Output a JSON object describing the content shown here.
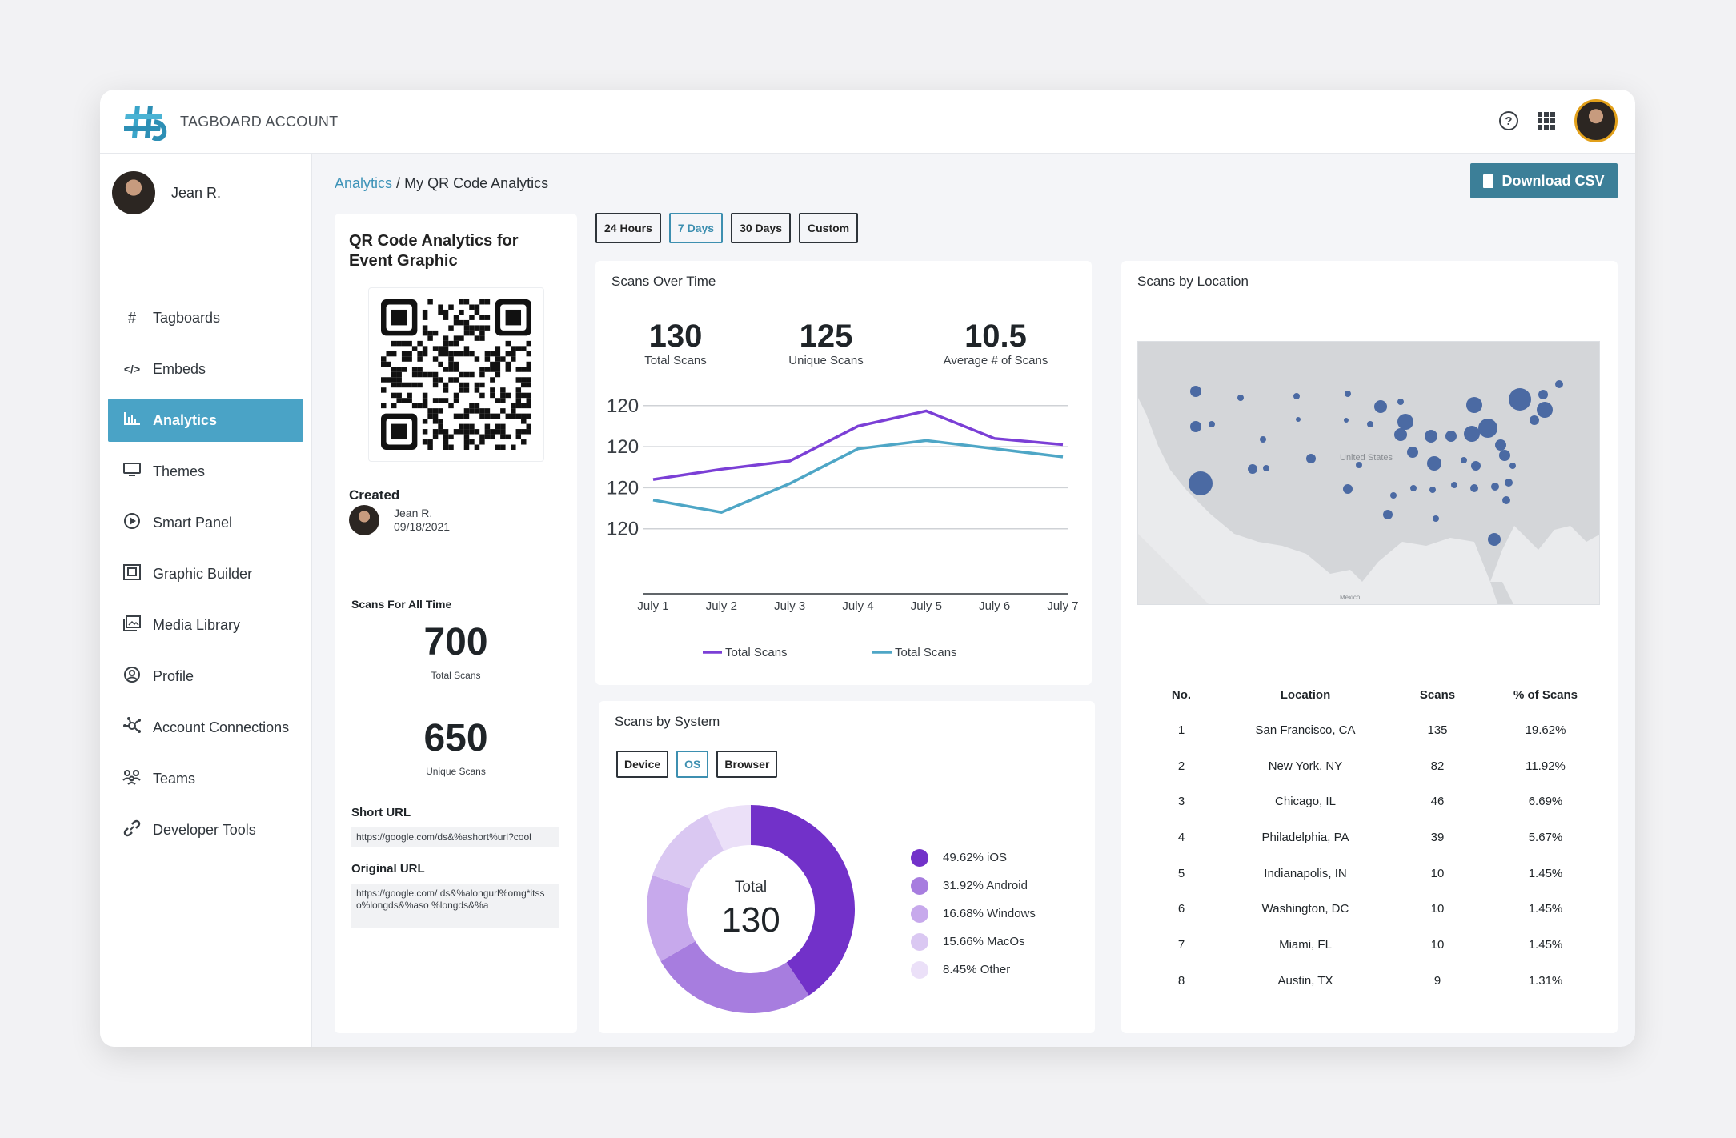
{
  "header": {
    "account_label": "TAGBOARD ACCOUNT",
    "icons": [
      "help-icon",
      "apps-grid-icon",
      "avatar"
    ]
  },
  "sidebar": {
    "user_name": "Jean R.",
    "items": [
      {
        "label": "Tagboards",
        "icon": "hashtag-icon"
      },
      {
        "label": "Embeds",
        "icon": "code-icon"
      },
      {
        "label": "Analytics",
        "icon": "bar-chart-icon",
        "active": true
      },
      {
        "label": "Themes",
        "icon": "monitor-icon"
      },
      {
        "label": "Smart Panel",
        "icon": "play-circle-icon"
      },
      {
        "label": "Graphic Builder",
        "icon": "graphic-icon"
      },
      {
        "label": "Media Library",
        "icon": "image-icon"
      },
      {
        "label": "Profile",
        "icon": "user-circle-icon"
      },
      {
        "label": "Account Connections",
        "icon": "network-icon"
      },
      {
        "label": "Teams",
        "icon": "team-icon"
      },
      {
        "label": "Developer Tools",
        "icon": "link-icon"
      }
    ]
  },
  "breadcrumb": {
    "root": "Analytics",
    "separator": "/",
    "current": "My QR Code Analytics"
  },
  "download_button": "Download CSV",
  "qr_panel": {
    "title": "QR Code Analytics for Event Graphic",
    "created_label": "Created",
    "created_by": "Jean R.",
    "created_date": "09/18/2021",
    "all_time_label": "Scans For All Time",
    "total_scans": "700",
    "total_scans_label": "Total Scans",
    "unique_scans": "650",
    "unique_scans_label": "Unique Scans",
    "short_url_label": "Short URL",
    "short_url": "https://google.com/ds&%ashort%url?cool",
    "original_url_label": "Original URL",
    "original_url": "https://google.com/ ds&%alongurl%omg*itsso%longds&%aso %longds&%a"
  },
  "time_ranges": [
    {
      "label": "24 Hours"
    },
    {
      "label": "7 Days",
      "active": true
    },
    {
      "label": "30 Days"
    },
    {
      "label": "Custom"
    }
  ],
  "scans_over_time": {
    "title": "Scans Over Time",
    "stats": [
      {
        "value": "130",
        "label": "Total Scans"
      },
      {
        "value": "125",
        "label": "Unique Scans"
      },
      {
        "value": "10.5",
        "label": "Average # of Scans"
      }
    ]
  },
  "scans_by_system": {
    "title": "Scans by System",
    "tabs": [
      {
        "label": "Device"
      },
      {
        "label": "OS",
        "active": true
      },
      {
        "label": "Browser"
      }
    ],
    "total_label": "Total",
    "total_value": "130"
  },
  "scans_by_location": {
    "title": "Scans  by Location",
    "map_labels": [
      "United States",
      "Mexico"
    ],
    "columns": [
      "No.",
      "Location",
      "Scans",
      "% of Scans"
    ],
    "rows": [
      [
        "1",
        "San Francisco, CA",
        "135",
        "19.62%"
      ],
      [
        "2",
        "New York, NY",
        "82",
        "11.92%"
      ],
      [
        "3",
        "Chicago, IL",
        "46",
        "6.69%"
      ],
      [
        "4",
        "Philadelphia, PA",
        "39",
        "5.67%"
      ],
      [
        "5",
        "Indianapolis, IN",
        "10",
        "1.45%"
      ],
      [
        "6",
        "Washington, DC",
        "10",
        "1.45%"
      ],
      [
        "7",
        "Miami, FL",
        "10",
        "1.45%"
      ],
      [
        "8",
        "Austin, TX",
        "9",
        "1.31%"
      ]
    ]
  },
  "chart_data": [
    {
      "type": "line",
      "categories": [
        "July 1",
        "July 2",
        "July 3",
        "July 4",
        "July 5",
        "July 6",
        "July 7"
      ],
      "ytick_labels": [
        "120",
        "120",
        "120",
        "120"
      ],
      "series": [
        {
          "name": "Total Scans",
          "color": "#7b3fd6",
          "values": [
            2.2,
            2.45,
            2.65,
            3.5,
            3.87,
            3.2,
            3.05
          ]
        },
        {
          "name": "Total Scans",
          "color": "#4ea6c6",
          "values": [
            1.7,
            1.4,
            2.1,
            2.95,
            3.15,
            2.95,
            2.75
          ]
        }
      ],
      "ylim": [
        0,
        4.6
      ],
      "grid": true,
      "legend": "bottom"
    },
    {
      "type": "pie",
      "donut": true,
      "slices": [
        {
          "label": "49.62% iOS",
          "value": 49.62,
          "color": "#7231c9"
        },
        {
          "label": "31.92% Android",
          "value": 31.92,
          "color": "#a77ddf"
        },
        {
          "label": "16.68% Windows",
          "value": 16.68,
          "color": "#c7a9ec"
        },
        {
          "label": "15.66% MacOs",
          "value": 15.66,
          "color": "#dac8f2"
        },
        {
          "label": "8.45% Other",
          "value": 8.45,
          "color": "#ebe0f8"
        }
      ],
      "legend": "right"
    }
  ]
}
